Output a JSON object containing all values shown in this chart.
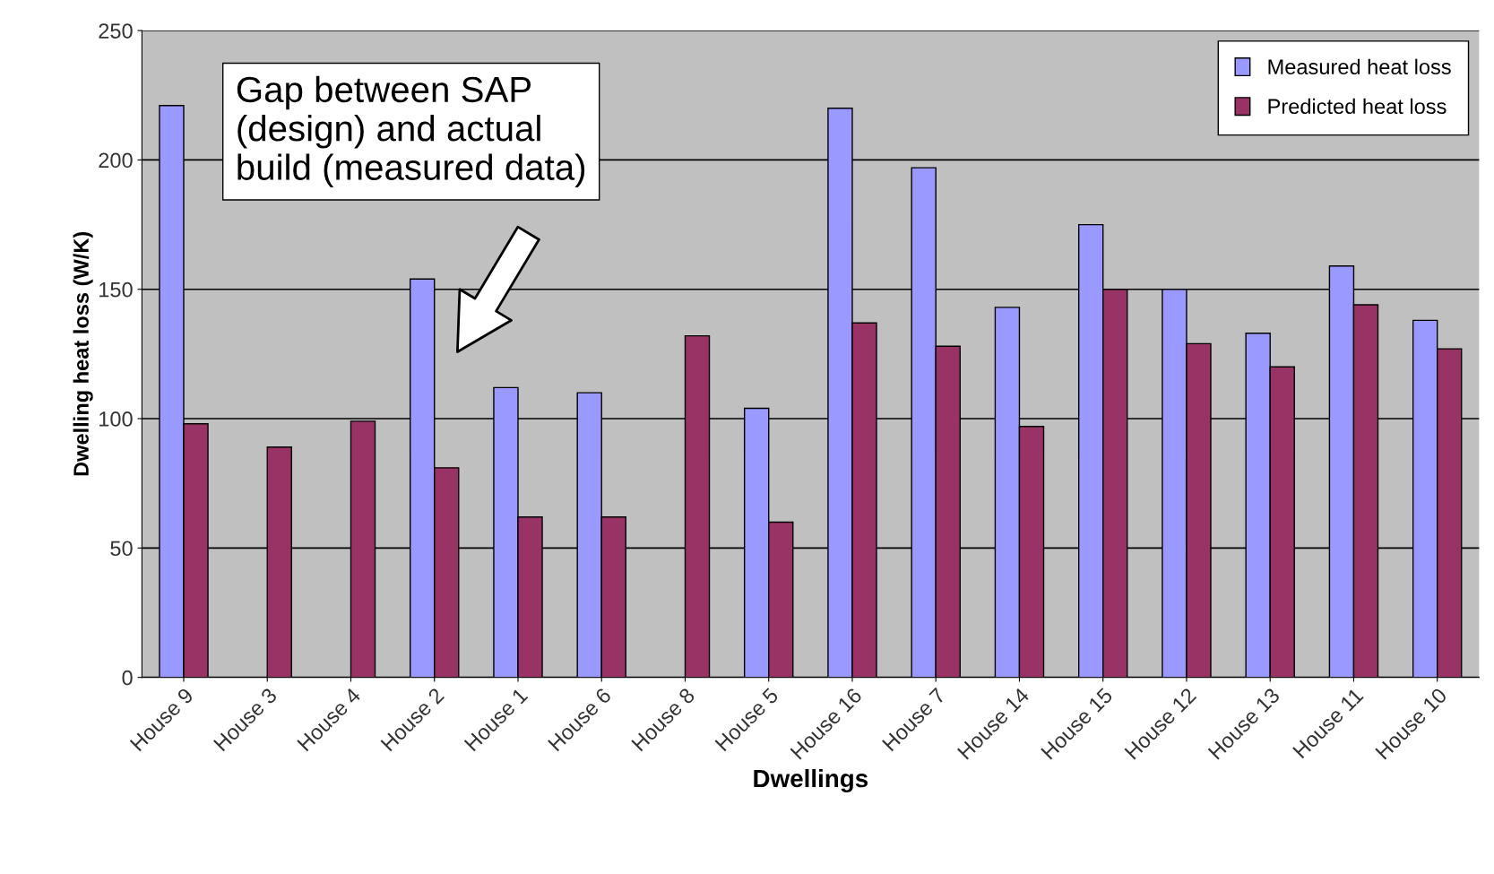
{
  "chart_data": {
    "type": "bar",
    "xlabel": "Dwellings",
    "ylabel": "Dwelling heat loss (W/K)",
    "categories": [
      "House 9",
      "House 3",
      "House 4",
      "House 2",
      "House 1",
      "House 6",
      "House 8",
      "House 5",
      "House 16",
      "House 7",
      "House 14",
      "House 15",
      "House 12",
      "House 13",
      "House 11",
      "House 10"
    ],
    "series": [
      {
        "name": "Measured heat loss",
        "color": "#9999ff",
        "values": [
          221,
          null,
          null,
          154,
          112,
          110,
          null,
          104,
          220,
          197,
          143,
          175,
          150,
          133,
          159,
          138
        ]
      },
      {
        "name": "Predicted heat loss",
        "color": "#993366",
        "values": [
          98,
          89,
          99,
          81,
          62,
          62,
          132,
          60,
          137,
          128,
          97,
          150,
          129,
          120,
          144,
          127
        ]
      }
    ],
    "ylim": [
      0,
      250
    ],
    "yticks": [
      0,
      50,
      100,
      150,
      200,
      250
    ],
    "grid": "y",
    "legend": "top right",
    "annotations": [
      "Gap between SAP\n(design) and actual\nbuild (measured data)"
    ]
  }
}
